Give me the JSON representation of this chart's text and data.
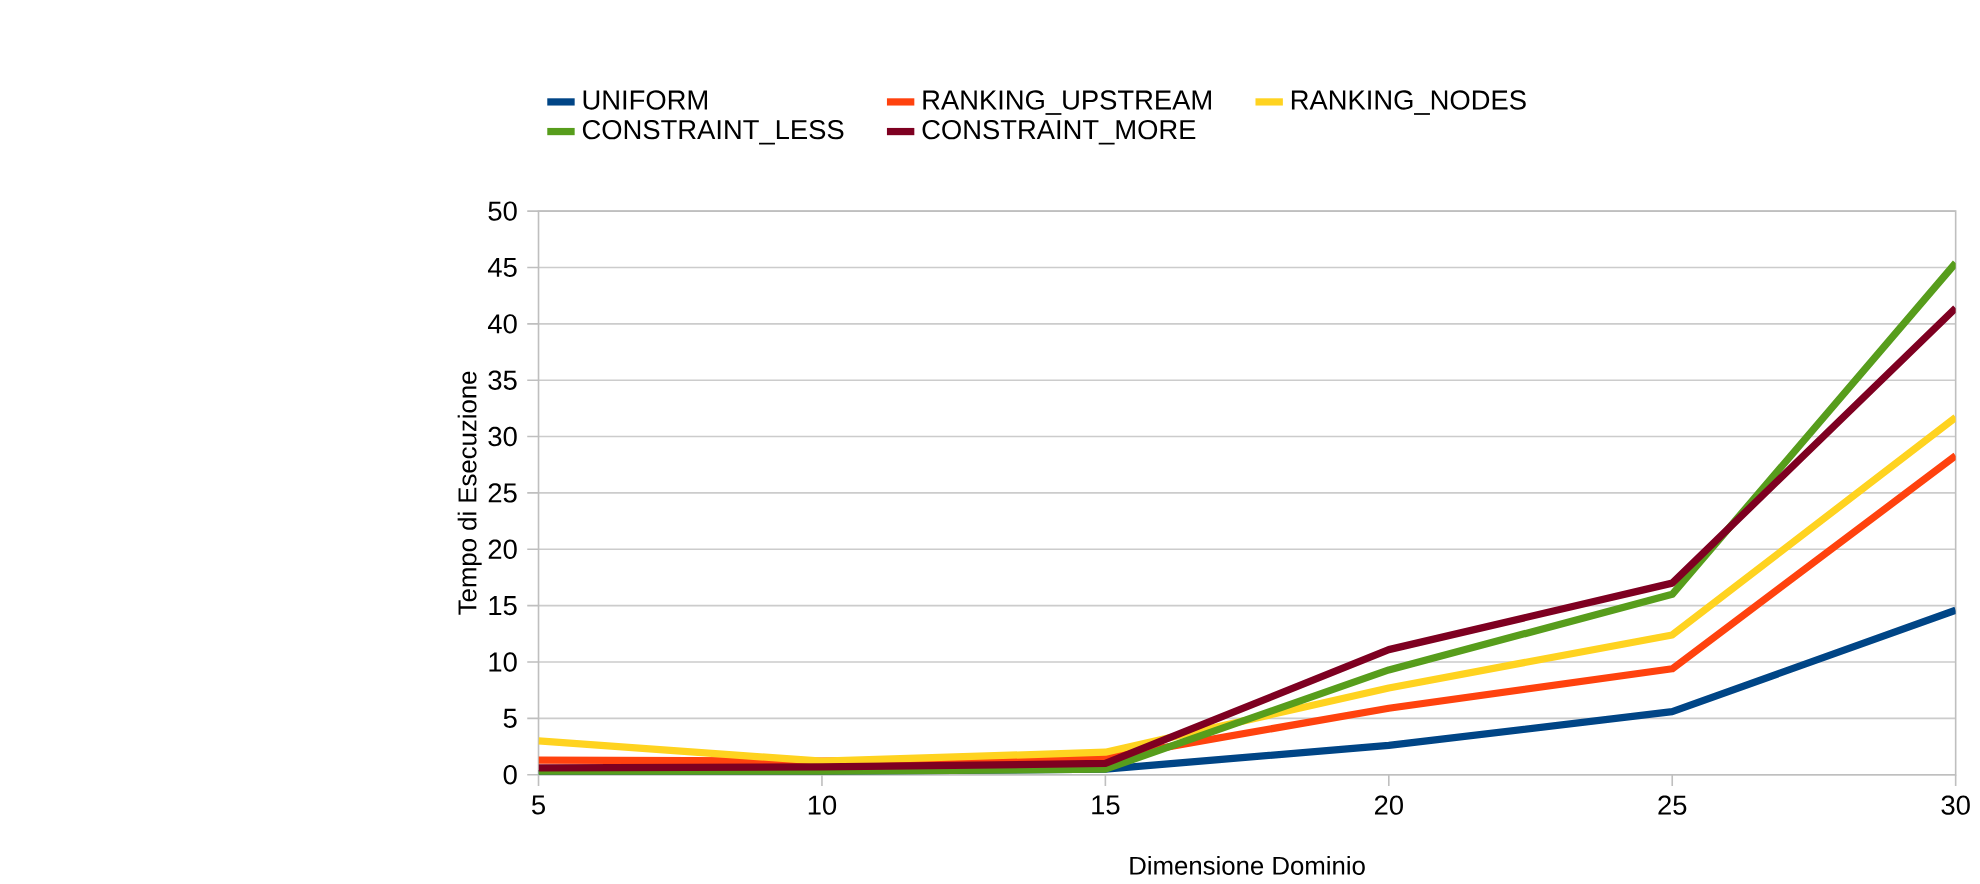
{
  "chart_data": {
    "type": "line",
    "xlabel": "Dimensione Dominio",
    "ylabel": "Tempo di Esecuzione",
    "x": [
      5,
      10,
      15,
      20,
      25,
      30
    ],
    "series": [
      {
        "name": "UNIFORM",
        "color": "#004586",
        "values": [
          0.1,
          0.3,
          0.5,
          2.6,
          5.6,
          14.6
        ]
      },
      {
        "name": "RANKING_UPSTREAM",
        "color": "#ff420e",
        "values": [
          1.3,
          1.2,
          1.5,
          5.9,
          9.4,
          28.3
        ]
      },
      {
        "name": "RANKING_NODES",
        "color": "#ffd320",
        "values": [
          3.0,
          1.2,
          2.0,
          7.7,
          12.4,
          31.7
        ]
      },
      {
        "name": "CONSTRAINT_LESS",
        "color": "#579d1c",
        "values": [
          0.1,
          0.3,
          0.5,
          9.3,
          16.0,
          45.4
        ]
      },
      {
        "name": "CONSTRAINT_MORE",
        "color": "#7e0021",
        "values": [
          0.6,
          0.7,
          1.0,
          11.1,
          17.0,
          41.4
        ]
      }
    ],
    "xlim": [
      5,
      30
    ],
    "xticks": [
      5,
      10,
      15,
      20,
      25,
      30
    ],
    "ylim": [
      0,
      50
    ],
    "yticks": [
      0,
      5,
      10,
      15,
      20,
      25,
      30,
      35,
      40,
      45,
      50
    ],
    "grid": "y",
    "legend": "top",
    "marker": "none",
    "line_style": "solid"
  }
}
